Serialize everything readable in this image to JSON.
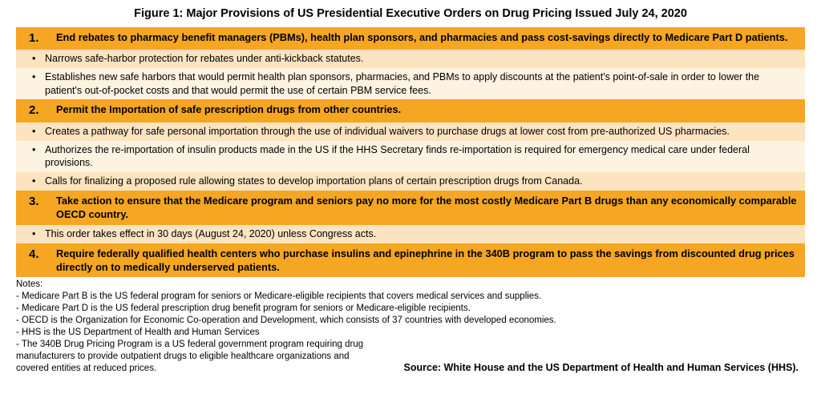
{
  "title": "Figure 1: Major Provisions of US Presidential Executive Orders on Drug Pricing Issued July 24, 2020",
  "colors": {
    "header_bg": "#f5a623",
    "bullet_odd": "#fde4c0",
    "bullet_even": "#fef2e0",
    "text": "#000000",
    "bg": "#ffffff"
  },
  "provisions": [
    {
      "num": "1.",
      "text": "End rebates to pharmacy benefit managers (PBMs), health plan sponsors, and pharmacies and pass cost-savings directly to Medicare Part D patients.",
      "bullets": [
        "Narrows safe-harbor protection for rebates under anti-kickback statutes.",
        "Establishes new safe harbors that would permit health plan sponsors, pharmacies, and PBMs to apply discounts at the patient's point-of-sale in order to lower the patient's out-of-pocket costs and that would permit the use of certain PBM service fees."
      ]
    },
    {
      "num": "2.",
      "text": "Permit the Importation of safe prescription drugs from other countries.",
      "bullets": [
        "Creates a pathway for safe personal importation through the use of individual waivers to purchase drugs at lower cost from pre-authorized US pharmacies.",
        "Authorizes the re-importation of insulin products made in the US if the HHS Secretary finds re-importation is required for emergency medical care under federal provisions.",
        "Calls for finalizing a proposed rule allowing states to develop importation plans of certain prescription drugs from Canada."
      ]
    },
    {
      "num": "3.",
      "text": "Take action to ensure that the Medicare program and seniors pay no more for the most costly Medicare Part B drugs than any economically comparable OECD country.",
      "bullets": [
        "This order takes effect in 30 days (August 24, 2020) unless Congress acts."
      ]
    },
    {
      "num": "4.",
      "text": "Require federally qualified health centers who purchase insulins and epinephrine in the 340B program to pass the savings from discounted drug prices directly on to medically underserved patients.",
      "bullets": []
    }
  ],
  "notes_label": "Notes:",
  "notes": [
    "- Medicare Part B is the US federal program for seniors or Medicare-eligible recipients that covers medical services and supplies.",
    "- Medicare Part D is the US federal prescription drug benefit program for seniors or Medicare-eligible recipients.",
    "- OECD is the Organization for Economic Co-operation and Development, which consists of 37 countries with developed economies.",
    "- HHS is the US Department of Health and Human Services"
  ],
  "last_note": "- The 340B Drug Pricing Program is a US federal government program requiring drug manufacturers to provide outpatient drugs to eligible healthcare organizations and covered entities at reduced prices.",
  "source": "Source: White House and the US Department of Health and Human Services (HHS)."
}
